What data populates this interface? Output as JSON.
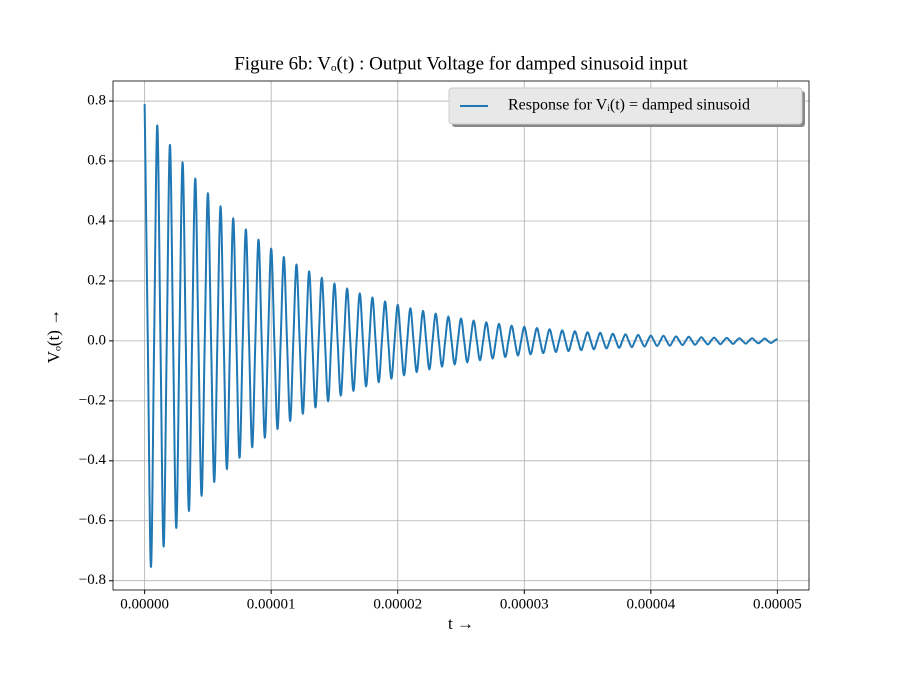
{
  "chart_data": {
    "type": "line",
    "title": "Figure 6b: Vₒ(t) : Output Voltage for damped sinusoid input",
    "x_label": "t →",
    "y_label": "Vₒ(t) →",
    "x": [
      0,
      2.5e-07,
      5e-07,
      7.5e-07,
      1e-06,
      1.25e-06,
      1.5e-06,
      1.75e-06,
      2e-06,
      2.25e-06,
      2.5e-06,
      2.75e-06,
      3e-06,
      3.25e-06,
      3.5e-06,
      3.75e-06,
      4e-06,
      4.25e-06,
      4.5e-06,
      4.75e-06,
      5e-06,
      5.25e-06,
      5.5e-06,
      5.75e-06,
      6e-06,
      6.25e-06,
      6.5e-06,
      6.75e-06,
      7e-06,
      7.25e-06,
      7.5e-06,
      7.75e-06,
      8e-06,
      8.25e-06,
      8.5e-06,
      8.75e-06,
      9e-06,
      9.25e-06,
      9.5e-06,
      9.75e-06,
      1e-05,
      1.025e-05,
      1.05e-05,
      1.075e-05,
      1.1e-05,
      1.125e-05,
      1.15e-05,
      1.175e-05,
      1.2e-05,
      1.225e-05,
      1.25e-05,
      1.275e-05,
      1.3e-05,
      1.325e-05,
      1.35e-05,
      1.375e-05,
      1.4e-05,
      1.425e-05,
      1.45e-05,
      1.475e-05,
      1.5e-05,
      1.525e-05,
      1.55e-05,
      1.575e-05,
      1.6e-05,
      1.625e-05,
      1.65e-05,
      1.675e-05,
      1.7e-05,
      1.725e-05,
      1.75e-05,
      1.775e-05,
      1.8e-05,
      1.825e-05,
      1.85e-05,
      1.875e-05,
      1.9e-05,
      1.925e-05,
      1.95e-05,
      1.975e-05,
      2e-05,
      2.025e-05,
      2.05e-05,
      2.075e-05,
      2.1e-05,
      2.125e-05,
      2.15e-05,
      2.175e-05,
      2.2e-05,
      2.225e-05,
      2.25e-05,
      2.275e-05,
      2.3e-05,
      2.325e-05,
      2.35e-05,
      2.375e-05,
      2.4e-05,
      2.425e-05,
      2.45e-05,
      2.475e-05,
      2.5e-05,
      2.525e-05,
      2.55e-05,
      2.575e-05,
      2.6e-05,
      2.625e-05,
      2.65e-05,
      2.675e-05,
      2.7e-05,
      2.725e-05,
      2.75e-05,
      2.775e-05,
      2.8e-05,
      2.825e-05,
      2.85e-05,
      2.875e-05,
      2.9e-05,
      2.925e-05,
      2.95e-05,
      2.975e-05,
      3e-05,
      3.025e-05,
      3.05e-05,
      3.075e-05,
      3.1e-05,
      3.125e-05,
      3.15e-05,
      3.175e-05,
      3.2e-05,
      3.225e-05,
      3.25e-05,
      3.275e-05,
      3.3e-05,
      3.325e-05,
      3.35e-05,
      3.375e-05,
      3.4e-05,
      3.425e-05,
      3.45e-05,
      3.475e-05,
      3.5e-05,
      3.525e-05,
      3.55e-05,
      3.575e-05,
      3.6e-05,
      3.625e-05,
      3.65e-05,
      3.675e-05,
      3.7e-05,
      3.725e-05,
      3.75e-05,
      3.775e-05,
      3.8e-05,
      3.825e-05,
      3.85e-05,
      3.875e-05,
      3.9e-05,
      3.925e-05,
      3.95e-05,
      3.975e-05,
      4e-05,
      4.025e-05,
      4.05e-05,
      4.075e-05,
      4.1e-05,
      4.125e-05,
      4.15e-05,
      4.175e-05,
      4.2e-05,
      4.225e-05,
      4.25e-05,
      4.275e-05,
      4.3e-05,
      4.325e-05,
      4.35e-05,
      4.375e-05,
      4.4e-05,
      4.425e-05,
      4.45e-05,
      4.475e-05,
      4.5e-05,
      4.525e-05,
      4.55e-05,
      4.575e-05,
      4.6e-05,
      4.625e-05,
      4.65e-05,
      4.675e-05,
      4.7e-05,
      4.725e-05,
      4.75e-05,
      4.775e-05,
      4.8e-05,
      4.825e-05,
      4.85e-05,
      4.875e-05,
      4.9e-05,
      4.925e-05,
      4.95e-05,
      4.975e-05,
      5e-05
    ],
    "series": [
      {
        "name": "Response for Vᵢ(t) = damped sinusoid",
        "color": "#1f77b4",
        "values": [
          0.79,
          0,
          -0.754,
          0,
          0.719,
          0,
          -0.686,
          0,
          0.654,
          0,
          -0.624,
          0,
          0.596,
          0,
          -0.568,
          0,
          0.542,
          0,
          -0.517,
          0,
          0.493,
          0,
          -0.471,
          0,
          0.449,
          0,
          -0.428,
          0,
          0.409,
          0,
          -0.39,
          0,
          0.372,
          0,
          -0.355,
          0,
          0.338,
          0,
          -0.323,
          0,
          0.308,
          0,
          -0.294,
          0,
          0.28,
          0,
          -0.267,
          0,
          0.255,
          0,
          -0.243,
          0,
          0.232,
          0,
          -0.222,
          0,
          0.211,
          0,
          -0.202,
          0,
          0.192,
          0,
          -0.183,
          0,
          0.175,
          0,
          -0.167,
          0,
          0.159,
          0,
          -0.152,
          0,
          0.145,
          0,
          -0.138,
          0,
          0.132,
          0,
          -0.126,
          0,
          0.12,
          0,
          -0.115,
          0,
          0.109,
          0,
          -0.104,
          0,
          0.1,
          0,
          -0.095,
          0,
          0.091,
          0,
          -0.086,
          0,
          0.082,
          0,
          -0.079,
          0,
          0.075,
          0,
          -0.072,
          0,
          0.068,
          0,
          -0.065,
          0,
          0.062,
          0,
          -0.059,
          0,
          0.057,
          0,
          -0.054,
          0,
          0.051,
          0,
          -0.049,
          0,
          0.047,
          0,
          -0.045,
          0,
          0.043,
          0,
          -0.041,
          0,
          0.039,
          0,
          -0.037,
          0,
          0.035,
          0,
          -0.034,
          0,
          0.032,
          0,
          -0.031,
          0,
          0.029,
          0,
          -0.028,
          0,
          0.027,
          0,
          -0.025,
          0,
          0.024,
          0,
          -0.023,
          0,
          0.022,
          0,
          -0.021,
          0,
          0.02,
          0,
          -0.019,
          0,
          0.018,
          0,
          -0.017,
          0,
          0.017,
          0,
          -0.016,
          0,
          0.015,
          0,
          -0.014,
          0,
          0.014,
          0,
          -0.013,
          0,
          0.012,
          0,
          -0.012,
          0,
          0.011,
          0,
          -0.011,
          0,
          0.01,
          0,
          -0.01,
          0,
          0.009,
          0,
          -0.009,
          0,
          0.009,
          0,
          -0.008,
          0,
          0.008,
          0,
          -0.007,
          0,
          0.007
        ]
      }
    ],
    "xlim": [
      -2.5e-06,
      5.25e-05
    ],
    "xticks": [
      {
        "value": 0,
        "label": "0.00000"
      },
      {
        "value": 1e-05,
        "label": "0.00001"
      },
      {
        "value": 2e-05,
        "label": "0.00002"
      },
      {
        "value": 3e-05,
        "label": "0.00003"
      },
      {
        "value": 4e-05,
        "label": "0.00004"
      },
      {
        "value": 5e-05,
        "label": "0.00005"
      }
    ],
    "ylim": [
      -0.831,
      0.867
    ],
    "yticks": [
      {
        "value": -0.8,
        "label": "−0.8"
      },
      {
        "value": -0.6,
        "label": "−0.6"
      },
      {
        "value": -0.4,
        "label": "−0.4"
      },
      {
        "value": -0.2,
        "label": "−0.2"
      },
      {
        "value": 0,
        "label": "0.0"
      },
      0.2,
      0.4,
      0.6,
      0.8
    ],
    "grid": true,
    "legend": "upper right"
  }
}
